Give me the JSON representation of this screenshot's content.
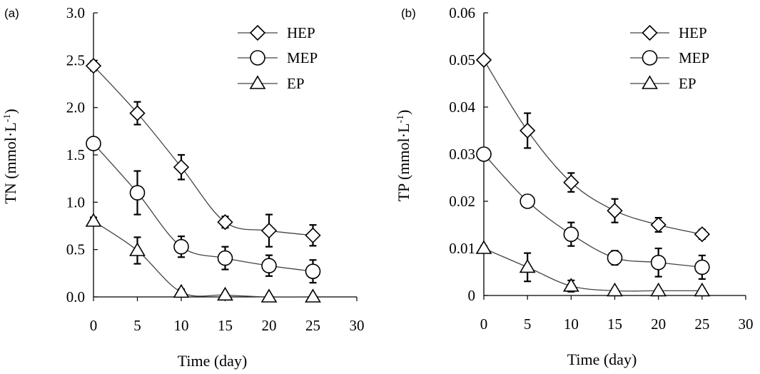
{
  "figure": {
    "panels": [
      "(a)",
      "(b)"
    ]
  },
  "chart_data": [
    {
      "type": "line",
      "panel": "(a)",
      "xlabel": "Time (day)",
      "ylabel": "TN (mmol·L",
      "ylabel_sup": "-1",
      "ylabel_close": ")",
      "xlim": [
        0,
        30
      ],
      "ylim": [
        0,
        3.0
      ],
      "xticks": [
        0,
        5,
        10,
        15,
        20,
        25,
        30
      ],
      "xtick_labels": [
        "0",
        "5",
        "10",
        "15",
        "20",
        "25",
        "30"
      ],
      "yticks": [
        0,
        0.5,
        1.0,
        1.5,
        2.0,
        2.5,
        3.0
      ],
      "ytick_labels": [
        "0.0",
        "0.5",
        "1.0",
        "1.5",
        "2.0",
        "2.5",
        "3.0"
      ],
      "grid": false,
      "legend_position": "top-right",
      "x": [
        0,
        5,
        10,
        15,
        20,
        25
      ],
      "series": [
        {
          "name": "HEP",
          "marker": "diamond",
          "values": [
            2.44,
            1.94,
            1.37,
            0.79,
            0.7,
            0.65
          ],
          "errors": [
            0.05,
            0.12,
            0.13,
            0.06,
            0.17,
            0.11
          ]
        },
        {
          "name": "MEP",
          "marker": "circle",
          "values": [
            1.62,
            1.1,
            0.53,
            0.41,
            0.33,
            0.27
          ],
          "errors": [
            0.04,
            0.23,
            0.11,
            0.12,
            0.11,
            0.12
          ]
        },
        {
          "name": "EP",
          "marker": "triangle",
          "values": [
            0.8,
            0.49,
            0.05,
            0.02,
            0.0,
            0.0
          ],
          "errors": [
            0.04,
            0.14,
            0.03,
            0.02,
            0.01,
            0.01
          ]
        }
      ]
    },
    {
      "type": "line",
      "panel": "(b)",
      "xlabel": "Time (day)",
      "ylabel": "TP (mmol·L",
      "ylabel_sup": "-1",
      "ylabel_close": ")",
      "xlim": [
        0,
        30
      ],
      "ylim": [
        0,
        0.06
      ],
      "xticks": [
        0,
        5,
        10,
        15,
        20,
        25,
        30
      ],
      "xtick_labels": [
        "0",
        "5",
        "10",
        "15",
        "20",
        "25",
        "30"
      ],
      "yticks": [
        0,
        0.01,
        0.02,
        0.03,
        0.04,
        0.05,
        0.06
      ],
      "ytick_labels": [
        "0",
        "0.01",
        "0.02",
        "0.03",
        "0.04",
        "0.05",
        "0.06"
      ],
      "grid": false,
      "legend_position": "top-right",
      "x": [
        0,
        5,
        10,
        15,
        20,
        25
      ],
      "series": [
        {
          "name": "HEP",
          "marker": "diamond",
          "values": [
            0.05,
            0.035,
            0.024,
            0.018,
            0.015,
            0.013
          ],
          "errors": [
            0.0005,
            0.0037,
            0.002,
            0.0025,
            0.0015,
            0.001
          ]
        },
        {
          "name": "MEP",
          "marker": "circle",
          "values": [
            0.03,
            0.02,
            0.013,
            0.008,
            0.007,
            0.006
          ],
          "errors": [
            0.0005,
            0.0005,
            0.0025,
            0.0015,
            0.003,
            0.0025
          ]
        },
        {
          "name": "EP",
          "marker": "triangle",
          "values": [
            0.01,
            0.006,
            0.002,
            0.001,
            0.001,
            0.001
          ],
          "errors": [
            0.0005,
            0.003,
            0.0012,
            0.0004,
            0.0004,
            0.0004
          ]
        }
      ]
    }
  ]
}
